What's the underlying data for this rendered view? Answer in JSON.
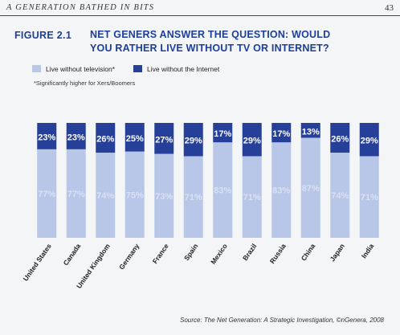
{
  "header": {
    "running_title": "A GENERATION BATHED IN BITS",
    "page_number": "43"
  },
  "figure": {
    "label": "FIGURE 2.1",
    "title_line1": "NET GENERS ANSWER THE QUESTION: WOULD",
    "title_line2": "YOU RATHER LIVE WITHOUT TV OR INTERNET?"
  },
  "note": "*Significantly higher for Xers/Boomers",
  "source": "Source: The Net Generation: A Strategic Investigation, ©nGenera, 2008",
  "colors": {
    "television": "#b8c6e8",
    "internet": "#26409a",
    "heading": "#1d3f9b"
  },
  "chart_data": {
    "type": "bar",
    "stacked": true,
    "categories": [
      "United States",
      "Canada",
      "United Kingdom",
      "Germany",
      "France",
      "Spain",
      "Mexico",
      "Brazil",
      "Russia",
      "China",
      "Japan",
      "India"
    ],
    "series": [
      {
        "name": "Live without television*",
        "values": [
          77,
          77,
          74,
          75,
          73,
          71,
          83,
          71,
          83,
          87,
          74,
          71
        ]
      },
      {
        "name": "Live without the Internet",
        "values": [
          23,
          23,
          26,
          25,
          27,
          29,
          17,
          29,
          17,
          13,
          26,
          29
        ]
      }
    ],
    "value_suffix": "%",
    "ylim": [
      0,
      100
    ]
  }
}
